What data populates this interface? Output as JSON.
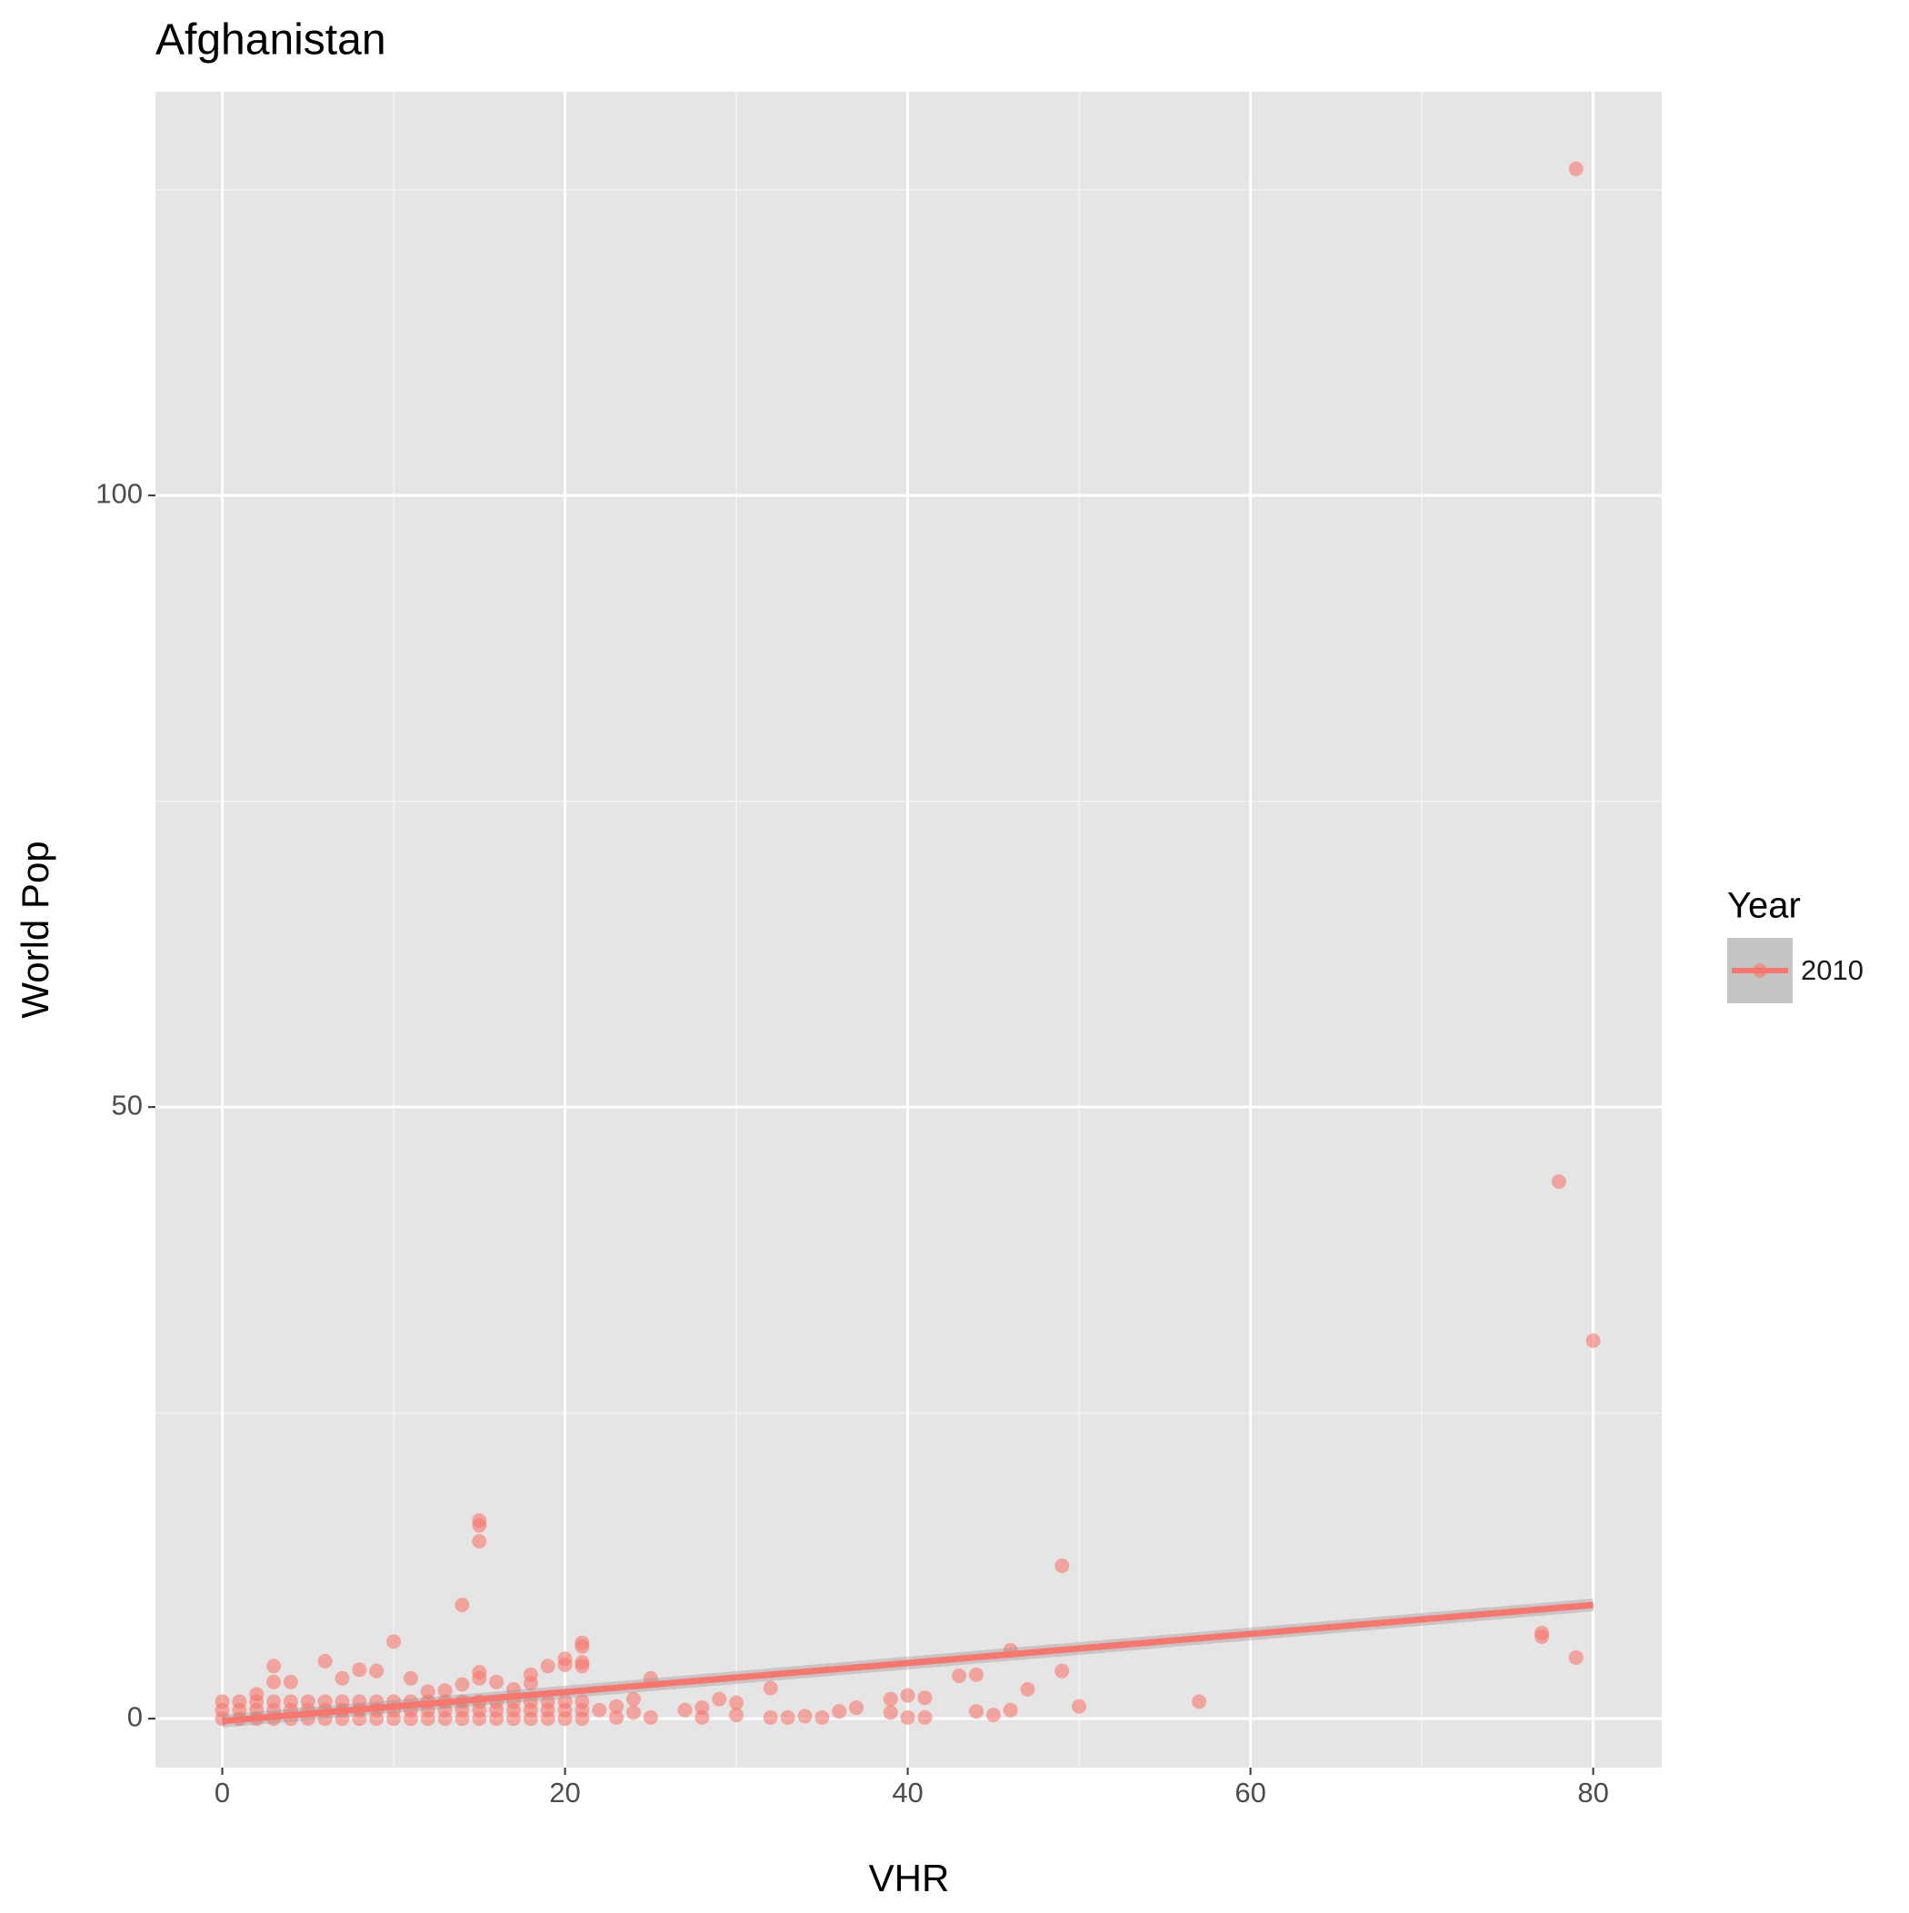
{
  "chart_data": {
    "type": "scatter",
    "title": "Afghanistan",
    "x_label": "VHR",
    "y_label": "World Pop",
    "legend_title": "Year",
    "legend_position": "right",
    "grid": true,
    "xlim": [
      -3.9,
      84
    ],
    "ylim": [
      -4,
      133
    ],
    "xticks": [
      0,
      20,
      40,
      60,
      80
    ],
    "yticks": [
      0,
      50,
      100
    ],
    "minor_xticks": [
      10,
      30,
      50,
      70
    ],
    "minor_yticks": [
      25,
      75,
      125
    ],
    "series": [
      {
        "name": "2010",
        "color": "#F8766D",
        "x": [
          79,
          78,
          80,
          49,
          15,
          15,
          15,
          14,
          10,
          21,
          21,
          21,
          21,
          46,
          77,
          77,
          79,
          49,
          47,
          43,
          44,
          57,
          50,
          45,
          44,
          46,
          36,
          37,
          39,
          39,
          40,
          40,
          41,
          41,
          32,
          32,
          33,
          34,
          35,
          29,
          30,
          30,
          27,
          28,
          28,
          25,
          25,
          24,
          24,
          23,
          23,
          22,
          20,
          20,
          19,
          18,
          18,
          9,
          8,
          7,
          6,
          3,
          3,
          4,
          2,
          11,
          12,
          13,
          14,
          15,
          15,
          16,
          17,
          0,
          0,
          0,
          1,
          1,
          1,
          2,
          2,
          2,
          3,
          3,
          3,
          4,
          4,
          4,
          5,
          5,
          5,
          6,
          6,
          6,
          7,
          7,
          7,
          8,
          8,
          8,
          9,
          9,
          9,
          10,
          10,
          10,
          11,
          11,
          11,
          12,
          12,
          12,
          13,
          13,
          13,
          14,
          14,
          14,
          15,
          15,
          15,
          16,
          16,
          16,
          17,
          17,
          17,
          18,
          18,
          18,
          19,
          19,
          19,
          20,
          20,
          20,
          21,
          21,
          21
        ],
        "values": [
          126.7,
          43.9,
          30.9,
          12.5,
          16.2,
          15.8,
          14.5,
          9.3,
          6.3,
          6.2,
          5.9,
          4.6,
          4.3,
          5.6,
          7,
          6.7,
          5,
          3.9,
          2.4,
          3.5,
          3.6,
          1.4,
          1,
          0.3,
          0.6,
          0.7,
          0.6,
          0.9,
          0.5,
          1.6,
          1.9,
          0.1,
          1.7,
          0.1,
          2.5,
          0.1,
          0.1,
          0.2,
          0.1,
          1.6,
          1.3,
          0.3,
          0.7,
          0.9,
          0.1,
          3.3,
          0.1,
          1.6,
          0.5,
          1,
          0.1,
          0.7,
          4.4,
          4.9,
          4.3,
          3.6,
          2.9,
          3.9,
          4,
          3.3,
          4.7,
          4.3,
          3,
          3,
          2,
          3.3,
          2.2,
          2.3,
          2.8,
          3.8,
          3.3,
          3,
          2.4,
          0,
          0.7,
          1.4,
          0,
          0.7,
          1.4,
          0,
          0.7,
          1.4,
          0,
          0.7,
          1.4,
          0,
          0.7,
          1.4,
          0,
          0.7,
          1.4,
          0,
          0.7,
          1.4,
          0,
          0.7,
          1.4,
          0,
          0.7,
          1.4,
          0,
          0.7,
          1.4,
          0,
          0.7,
          1.4,
          0,
          0.7,
          1.4,
          0,
          0.7,
          1.4,
          0,
          0.7,
          1.4,
          0,
          0.7,
          1.4,
          0,
          0.7,
          1.4,
          0,
          0.7,
          1.4,
          0,
          0.7,
          1.4,
          0,
          0.7,
          1.4,
          0,
          0.7,
          1.4,
          0,
          0.7,
          1.4,
          0,
          0.7,
          1.4
        ]
      }
    ],
    "trend": {
      "x": [
        0,
        80
      ],
      "y": [
        -0.2,
        9.3
      ]
    }
  }
}
